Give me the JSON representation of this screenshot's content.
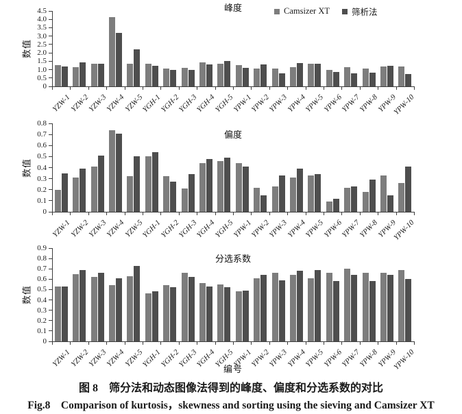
{
  "figure": {
    "caption_zh": "图 8　筛分法和动态图像法得到的峰度、偏度和分选系数的对比",
    "caption_en": "Fig.8　Comparison of kurtosis，skewness and sorting using the sieving and Camsizer XT"
  },
  "chart_data": [
    {
      "type": "bar",
      "title": "峰度",
      "ylabel": "数值",
      "xlabel": "",
      "ylim": [
        0,
        4.5
      ],
      "grid": false,
      "legend_position": "top-right",
      "yticks": [
        "0",
        "0.5",
        "1.0",
        "1.5",
        "2.0",
        "2.5",
        "3.0",
        "3.5",
        "4.0",
        "4.5"
      ],
      "categories": [
        "YZW-1",
        "YZW-2",
        "YZW-3",
        "YZW-4",
        "YZW-5",
        "YGH-1",
        "YGH-2",
        "YGH-3",
        "YGH-4",
        "YGH-5",
        "YPW-1",
        "YPW-2",
        "YPW-3",
        "YPW-4",
        "YPW-5",
        "YPW-6",
        "YPW-7",
        "YPW-8",
        "YPW-9",
        "YPW-10"
      ],
      "series": [
        {
          "name": "Camsizer XT",
          "color": "#7d7d7d",
          "values": [
            1.28,
            1.15,
            1.33,
            4.15,
            1.33,
            1.33,
            1.07,
            1.1,
            1.45,
            1.34,
            1.28,
            1.07,
            1.08,
            1.16,
            1.37,
            1.0,
            1.15,
            1.07,
            1.2,
            1.19
          ]
        },
        {
          "name": "筛析法",
          "color": "#4e4e4e",
          "values": [
            1.18,
            1.45,
            1.37,
            3.2,
            2.2,
            1.23,
            1.0,
            0.97,
            1.31,
            1.5,
            1.1,
            1.32,
            0.78,
            1.38,
            1.35,
            0.85,
            0.78,
            0.83,
            1.24,
            0.75
          ]
        }
      ]
    },
    {
      "type": "bar",
      "title": "偏度",
      "ylabel": "数值",
      "xlabel": "",
      "ylim": [
        0,
        0.8
      ],
      "grid": false,
      "legend_position": "none",
      "yticks": [
        "0",
        "0.1",
        "0.2",
        "0.3",
        "0.4",
        "0.5",
        "0.6",
        "0.7",
        "0.8"
      ],
      "categories": [
        "YZW-1",
        "YZW-2",
        "YZW-3",
        "YZW-4",
        "YZW-5",
        "YGH-1",
        "YGH-2",
        "YGH-3",
        "YGH-4",
        "YGH-5",
        "YPW-1",
        "YPW-2",
        "YPW-3",
        "YPW-4",
        "YPW-5",
        "YPW-6",
        "YPW-7",
        "YPW-8",
        "YPW-9",
        "YPW-10"
      ],
      "series": [
        {
          "name": "Camsizer XT",
          "color": "#7d7d7d",
          "values": [
            0.2,
            0.31,
            0.41,
            0.74,
            0.32,
            0.5,
            0.32,
            0.21,
            0.44,
            0.46,
            0.44,
            0.22,
            0.23,
            0.31,
            0.33,
            0.09,
            0.22,
            0.18,
            0.33,
            0.26
          ]
        },
        {
          "name": "筛析法",
          "color": "#4e4e4e",
          "values": [
            0.35,
            0.39,
            0.51,
            0.71,
            0.5,
            0.54,
            0.27,
            0.34,
            0.48,
            0.49,
            0.41,
            0.15,
            0.33,
            0.39,
            0.34,
            0.12,
            0.23,
            0.29,
            0.15,
            0.41
          ]
        }
      ]
    },
    {
      "type": "bar",
      "title": "分选系数",
      "ylabel": "数值",
      "xlabel": "编号",
      "ylim": [
        0,
        0.9
      ],
      "grid": false,
      "legend_position": "none",
      "yticks": [
        "0",
        "0.1",
        "0.2",
        "0.3",
        "0.4",
        "0.5",
        "0.6",
        "0.7",
        "0.8",
        "0.9"
      ],
      "categories": [
        "YZW-1",
        "YZW-2",
        "YZW-3",
        "YZW-4",
        "YZW-5",
        "YGH-1",
        "YGH-2",
        "YGH-3",
        "YGH-4",
        "YGH-5",
        "YPW-1",
        "YPW-2",
        "YPW-3",
        "YPW-4",
        "YPW-5",
        "YPW-6",
        "YPW-7",
        "YPW-8",
        "YPW-9",
        "YPW-10"
      ],
      "series": [
        {
          "name": "Camsizer XT",
          "color": "#7d7d7d",
          "values": [
            0.53,
            0.65,
            0.62,
            0.54,
            0.63,
            0.46,
            0.54,
            0.66,
            0.56,
            0.55,
            0.48,
            0.61,
            0.66,
            0.64,
            0.61,
            0.66,
            0.7,
            0.66,
            0.66,
            0.69
          ]
        },
        {
          "name": "筛析法",
          "color": "#4e4e4e",
          "values": [
            0.53,
            0.69,
            0.66,
            0.61,
            0.73,
            0.48,
            0.52,
            0.62,
            0.53,
            0.52,
            0.49,
            0.64,
            0.59,
            0.68,
            0.69,
            0.58,
            0.64,
            0.58,
            0.64,
            0.6
          ]
        }
      ]
    }
  ]
}
